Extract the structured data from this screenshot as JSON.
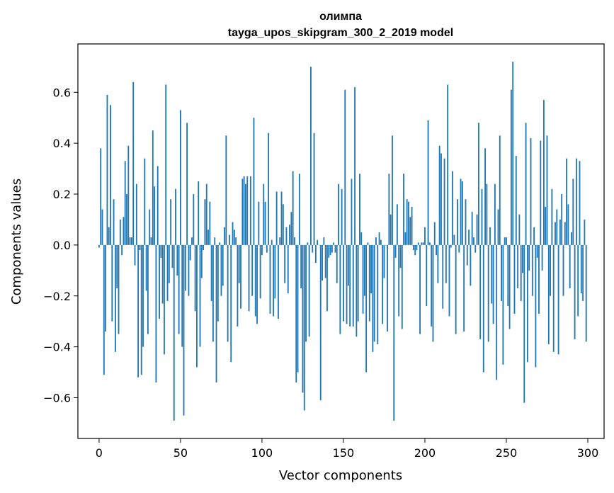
{
  "chart_data": {
    "type": "bar",
    "title": "олимпа",
    "subtitle": "tayga_upos_skipgram_300_2_2019 model",
    "xlabel": "Vector components",
    "ylabel": "Components values",
    "xlim": [
      -13,
      310
    ],
    "ylim": [
      -0.76,
      0.79
    ],
    "xticks": [
      0,
      50,
      100,
      150,
      200,
      250,
      300
    ],
    "yticks": [
      -0.6,
      -0.4,
      -0.2,
      0.0,
      0.2,
      0.4,
      0.6
    ],
    "xtick_labels": [
      "0",
      "50",
      "100",
      "150",
      "200",
      "250",
      "300"
    ],
    "ytick_labels": [
      "−0.6",
      "−0.4",
      "−0.2",
      "0.0",
      "0.2",
      "0.4",
      "0.6"
    ],
    "bar_color": "#1f77b4",
    "grid": false,
    "values": [
      -0.01,
      0.38,
      0.14,
      -0.51,
      -0.34,
      0.59,
      0.07,
      0.55,
      -0.3,
      0.18,
      -0.42,
      -0.17,
      -0.35,
      0.1,
      -0.04,
      0.11,
      0.33,
      0.2,
      0.39,
      0.03,
      0.03,
      0.64,
      -0.08,
      0.24,
      -0.52,
      -0.02,
      -0.51,
      -0.4,
      0.34,
      -0.18,
      -0.35,
      0.14,
      0.03,
      0.45,
      0.23,
      -0.54,
      0.31,
      -0.29,
      -0.05,
      -0.23,
      -0.43,
      0.63,
      -0.22,
      -0.15,
      0.18,
      -0.09,
      -0.69,
      0.22,
      -0.12,
      -0.35,
      0.53,
      -0.4,
      -0.67,
      -0.18,
      0.48,
      -0.2,
      -0.06,
      0.03,
      0.2,
      -0.26,
      -0.48,
      0.25,
      -0.4,
      -0.13,
      -0.02,
      0.18,
      0.24,
      0.06,
      0.17,
      -0.22,
      -0.38,
      0.03,
      -0.54,
      -0.3,
      0.01,
      -0.2,
      -0.16,
      0.07,
      0.43,
      -0.38,
      0.04,
      -0.46,
      0.09,
      0.06,
      0.03,
      -0.32,
      -0.15,
      -0.25,
      0.26,
      0.27,
      0.24,
      0.27,
      -0.26,
      0.27,
      -0.2,
      0.5,
      -0.28,
      -0.31,
      0.17,
      -0.21,
      -0.04,
      0.24,
      0.17,
      -0.03,
      0.44,
      -0.27,
      0.02,
      -0.28,
      -0.21,
      0.21,
      -0.29,
      0.03,
      0.21,
      0.16,
      -0.15,
      0.07,
      -0.19,
      0.08,
      0.13,
      0.29,
      0.03,
      -0.54,
      -0.5,
      0.28,
      -0.17,
      -0.58,
      -0.65,
      -0.38,
      0.01,
      -0.36,
      0.7,
      -0.03,
      0.44,
      -0.07,
      0.02,
      0.0,
      -0.61,
      -0.14,
      0.03,
      -0.13,
      -0.26,
      -0.05,
      -0.04,
      -0.03,
      0.01,
      -0.03,
      -0.15,
      0.24,
      -0.35,
      0.22,
      -0.3,
      0.61,
      -0.31,
      -0.16,
      -0.32,
      0.26,
      -0.32,
      0.62,
      -0.36,
      -0.3,
      0.28,
      0.05,
      -0.27,
      -0.2,
      -0.5,
      0.01,
      -0.3,
      -0.19,
      -0.42,
      -0.38,
      0.03,
      -0.39,
      0.05,
      0.02,
      -0.31,
      -0.13,
      0.0,
      -0.34,
      0.28,
      0.12,
      0.43,
      -0.69,
      -0.05,
      0.16,
      -0.28,
      -0.09,
      -0.33,
      0.28,
      0.05,
      0.18,
      0.17,
      0.11,
      0.15,
      -0.02,
      -0.04,
      -0.02,
      0.01,
      -0.35,
      0.01,
      0.01,
      0.07,
      -0.24,
      0.49,
      0.01,
      -0.32,
      -0.38,
      0.09,
      -0.04,
      -0.15,
      0.39,
      0.36,
      -0.25,
      0.34,
      -0.15,
      0.63,
      -0.28,
      -0.01,
      0.29,
      0.04,
      -0.35,
      0.18,
      -0.03,
      0.26,
      0.25,
      -0.34,
      0.18,
      -0.08,
      0.06,
      -0.16,
      0.13,
      0.03,
      -0.03,
      0.12,
      0.48,
      -0.37,
      0.22,
      -0.5,
      0.38,
      0.24,
      -0.38,
      0.07,
      -0.23,
      -0.31,
      0.24,
      -0.53,
      0.14,
      0.43,
      -0.22,
      -0.47,
      0.03,
      0.03,
      -0.24,
      -0.33,
      0.61,
      0.72,
      -0.27,
      0.35,
      -0.17,
      0.12,
      -0.22,
      -0.11,
      -0.62,
      0.48,
      -0.46,
      -0.1,
      0.42,
      -0.2,
      0.07,
      -0.48,
      -0.05,
      -0.27,
      0.41,
      -0.1,
      0.57,
      0.15,
      0.43,
      -0.39,
      -0.2,
      0.22,
      -0.42,
      0.09,
      0.14,
      -0.43,
      0.1,
      0.2,
      -0.2,
      0.09,
      0.34,
      0.16,
      -0.17,
      0.05,
      0.26,
      -0.37,
      0.34,
      -0.28,
      0.33,
      -0.19,
      -0.22,
      0.1,
      -0.38
    ]
  }
}
